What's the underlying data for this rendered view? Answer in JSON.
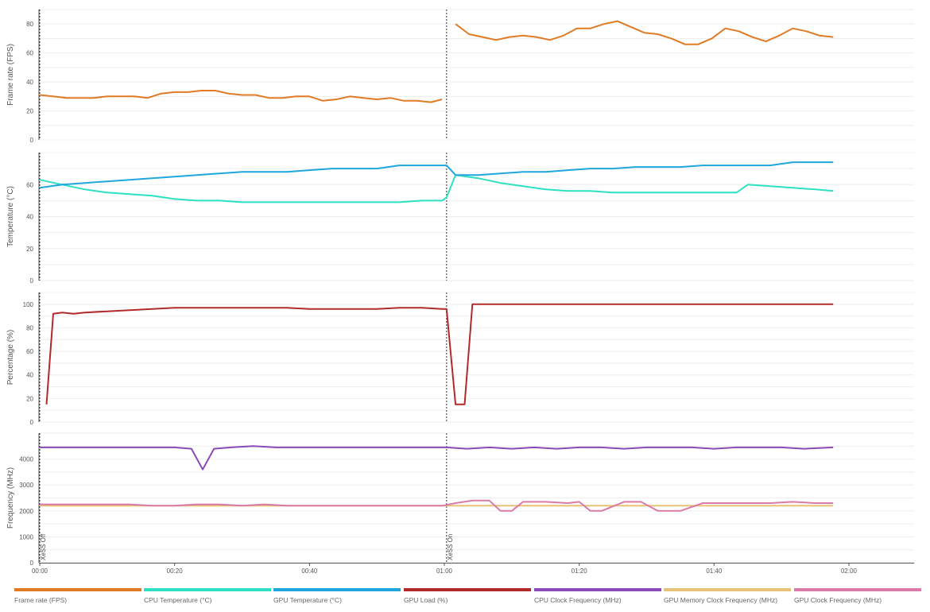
{
  "chart_data": {
    "type": "line",
    "x_ticks": [
      "00:00",
      "00:20",
      "00:40",
      "01:00",
      "01:20",
      "01:40",
      "02:00"
    ],
    "x_range_seconds": [
      0,
      7260
    ],
    "markers": [
      {
        "label": "XeSS Off",
        "t": 0
      },
      {
        "label": "XeSS On",
        "t": 3620
      }
    ],
    "panels": [
      {
        "id": "fps",
        "ylabel": "Frame rate (FPS)",
        "ylim": [
          0,
          90
        ],
        "yticks": [
          0,
          20,
          40,
          60,
          80
        ],
        "series": [
          {
            "name": "Frame rate (FPS)",
            "color": "#e07b24",
            "segments": [
              {
                "t": [
                  0,
                  120,
                  240,
                  360,
                  480,
                  600,
                  720,
                  840,
                  960,
                  1080,
                  1200,
                  1320,
                  1440,
                  1560,
                  1680,
                  1800,
                  1920,
                  2040,
                  2160,
                  2280,
                  2400,
                  2520,
                  2640,
                  2760,
                  2880,
                  3000,
                  3120,
                  3240,
                  3360,
                  3480,
                  3580
                ],
                "v": [
                  31,
                  30,
                  29,
                  29,
                  29,
                  30,
                  30,
                  30,
                  29,
                  32,
                  33,
                  33,
                  34,
                  34,
                  32,
                  31,
                  31,
                  29,
                  29,
                  30,
                  30,
                  27,
                  28,
                  30,
                  29,
                  28,
                  29,
                  27,
                  27,
                  26,
                  28
                ]
              },
              {
                "t": [
                  3700,
                  3820,
                  3940,
                  4060,
                  4180,
                  4300,
                  4420,
                  4540,
                  4660,
                  4780,
                  4900,
                  5020,
                  5140,
                  5260,
                  5380,
                  5500,
                  5620,
                  5740,
                  5860,
                  5980,
                  6100,
                  6220,
                  6340,
                  6460,
                  6580,
                  6700,
                  6820,
                  6940,
                  7060
                ],
                "v": [
                  80,
                  73,
                  71,
                  69,
                  71,
                  72,
                  71,
                  69,
                  72,
                  77,
                  77,
                  80,
                  82,
                  78,
                  74,
                  73,
                  70,
                  66,
                  66,
                  70,
                  77,
                  75,
                  71,
                  68,
                  72,
                  77,
                  75,
                  72,
                  71
                ]
              }
            ]
          }
        ]
      },
      {
        "id": "temperature",
        "ylabel": "Temperature (°C)",
        "ylim": [
          0,
          80
        ],
        "yticks": [
          0,
          20,
          40,
          60
        ],
        "series": [
          {
            "name": "CPU Temperature (°C)",
            "color": "#2ee0c2",
            "segments": [
              {
                "t": [
                  0,
                  200,
                  400,
                  600,
                  800,
                  1000,
                  1200,
                  1400,
                  1600,
                  1800,
                  2000,
                  2200,
                  2400,
                  2600,
                  2800,
                  3000,
                  3200,
                  3400,
                  3580,
                  3620,
                  3700
                ],
                "v": [
                  63,
                  60,
                  57,
                  55,
                  54,
                  53,
                  51,
                  50,
                  50,
                  49,
                  49,
                  49,
                  49,
                  49,
                  49,
                  49,
                  49,
                  50,
                  50,
                  52,
                  66
                ]
              },
              {
                "t": [
                  3700,
                  3900,
                  4100,
                  4300,
                  4500,
                  4700,
                  4900,
                  5100,
                  5300,
                  5500,
                  5700,
                  5900,
                  6100,
                  6200,
                  6300,
                  6500,
                  6700,
                  6900,
                  7060
                ],
                "v": [
                  66,
                  64,
                  61,
                  59,
                  57,
                  56,
                  56,
                  55,
                  55,
                  55,
                  55,
                  55,
                  55,
                  55,
                  60,
                  59,
                  58,
                  57,
                  56
                ]
              }
            ]
          },
          {
            "name": "GPU Temperature (°C)",
            "color": "#1fa6dd",
            "segments": [
              {
                "t": [
                  0,
                  200,
                  400,
                  600,
                  800,
                  1000,
                  1200,
                  1400,
                  1600,
                  1800,
                  2000,
                  2200,
                  2400,
                  2600,
                  2800,
                  3000,
                  3200,
                  3400,
                  3580,
                  3620,
                  3700
                ],
                "v": [
                  58,
                  60,
                  61,
                  62,
                  63,
                  64,
                  65,
                  66,
                  67,
                  68,
                  68,
                  68,
                  69,
                  70,
                  70,
                  70,
                  72,
                  72,
                  72,
                  72,
                  66
                ]
              },
              {
                "t": [
                  3700,
                  3900,
                  4100,
                  4300,
                  4500,
                  4700,
                  4900,
                  5100,
                  5300,
                  5500,
                  5700,
                  5900,
                  6100,
                  6300,
                  6500,
                  6700,
                  6900,
                  7060
                ],
                "v": [
                  66,
                  66,
                  67,
                  68,
                  68,
                  69,
                  70,
                  70,
                  71,
                  71,
                  71,
                  72,
                  72,
                  72,
                  72,
                  74,
                  74,
                  74
                ]
              }
            ]
          }
        ]
      },
      {
        "id": "percentage",
        "ylabel": "Percentage (%)",
        "ylim": [
          0,
          110
        ],
        "yticks": [
          0,
          20,
          40,
          60,
          80,
          100
        ],
        "series": [
          {
            "name": "GPU Load (%)",
            "color": "#b02a2a",
            "segments": [
              {
                "t": [
                  60,
                  120,
                  200,
                  300,
                  400,
                  600,
                  800,
                  1000,
                  1200,
                  1400,
                  1600,
                  1800,
                  2000,
                  2200,
                  2400,
                  2600,
                  2800,
                  3000,
                  3200,
                  3400,
                  3580,
                  3620,
                  3700,
                  3780,
                  3850,
                  4000,
                  4500,
                  5000,
                  5500,
                  6000,
                  6500,
                  7060
                ],
                "v": [
                  15,
                  92,
                  93,
                  92,
                  93,
                  94,
                  95,
                  96,
                  97,
                  97,
                  97,
                  97,
                  97,
                  97,
                  96,
                  96,
                  96,
                  96,
                  97,
                  97,
                  96,
                  96,
                  15,
                  15,
                  100,
                  100,
                  100,
                  100,
                  100,
                  100,
                  100,
                  100
                ]
              }
            ]
          }
        ]
      },
      {
        "id": "frequency",
        "ylabel": "Frequency (MHz)",
        "ylim": [
          0,
          5000
        ],
        "yticks": [
          0,
          1000,
          2000,
          3000,
          4000
        ],
        "series": [
          {
            "name": "CPU Clock Frequency (MHz)",
            "color": "#8a4bb8",
            "segments": [
              {
                "t": [
                  0,
                  300,
                  600,
                  900,
                  1200,
                  1350,
                  1450,
                  1550,
                  1700,
                  1900,
                  2100,
                  2300,
                  2500,
                  2700,
                  2900,
                  3100,
                  3300,
                  3500,
                  3620,
                  3800,
                  4000,
                  4200,
                  4400,
                  4600,
                  4800,
                  5000,
                  5200,
                  5400,
                  5600,
                  5800,
                  6000,
                  6200,
                  6400,
                  6600,
                  6800,
                  7060
                ],
                "v": [
                  4450,
                  4450,
                  4450,
                  4450,
                  4450,
                  4400,
                  3600,
                  4400,
                  4450,
                  4500,
                  4450,
                  4450,
                  4450,
                  4450,
                  4450,
                  4450,
                  4450,
                  4450,
                  4450,
                  4400,
                  4450,
                  4400,
                  4450,
                  4400,
                  4450,
                  4450,
                  4400,
                  4450,
                  4450,
                  4450,
                  4400,
                  4450,
                  4450,
                  4450,
                  4400,
                  4450
                ]
              }
            ]
          },
          {
            "name": "GPU Memory Clock Frequency (MHz)",
            "color": "#e8c277",
            "segments": [
              {
                "t": [
                  0,
                  7060
                ],
                "v": [
                  2200,
                  2200
                ]
              }
            ]
          },
          {
            "name": "GPU Clock Frequency (MHz)",
            "color": "#d97aa8",
            "segments": [
              {
                "t": [
                  0,
                  600,
                  800,
                  1000,
                  1200,
                  1400,
                  1600,
                  1800,
                  2000,
                  2200,
                  2400,
                  2600,
                  2800,
                  3000,
                  3200,
                  3400,
                  3580,
                  3700,
                  3850,
                  4000,
                  4100,
                  4200,
                  4300,
                  4500,
                  4700,
                  4800,
                  4900,
                  5000,
                  5200,
                  5350,
                  5500,
                  5700,
                  5900,
                  6100,
                  6300,
                  6500,
                  6700,
                  6900,
                  7060
                ],
                "v": [
                  2250,
                  2250,
                  2250,
                  2200,
                  2200,
                  2250,
                  2250,
                  2200,
                  2250,
                  2200,
                  2200,
                  2200,
                  2200,
                  2200,
                  2200,
                  2200,
                  2200,
                  2300,
                  2400,
                  2400,
                  2000,
                  2000,
                  2350,
                  2350,
                  2300,
                  2350,
                  2000,
                  2000,
                  2350,
                  2350,
                  2000,
                  2000,
                  2300,
                  2300,
                  2300,
                  2300,
                  2350,
                  2300,
                  2300
                ]
              }
            ]
          }
        ]
      }
    ],
    "legend": [
      {
        "label": "Frame rate (FPS)",
        "color": "#e07b24"
      },
      {
        "label": "CPU Temperature (°C)",
        "color": "#2ee0c2"
      },
      {
        "label": "GPU Temperature (°C)",
        "color": "#1fa6dd"
      },
      {
        "label": "GPU Load (%)",
        "color": "#b02a2a"
      },
      {
        "label": "CPU Clock Frequency (MHz)",
        "color": "#8a4bb8"
      },
      {
        "label": "GPU Memory Clock Frequency (MHz)",
        "color": "#e8c277"
      },
      {
        "label": "GPU Clock Frequency (MHz)",
        "color": "#d97aa8"
      }
    ],
    "grid": true,
    "legend_position": "bottom"
  }
}
